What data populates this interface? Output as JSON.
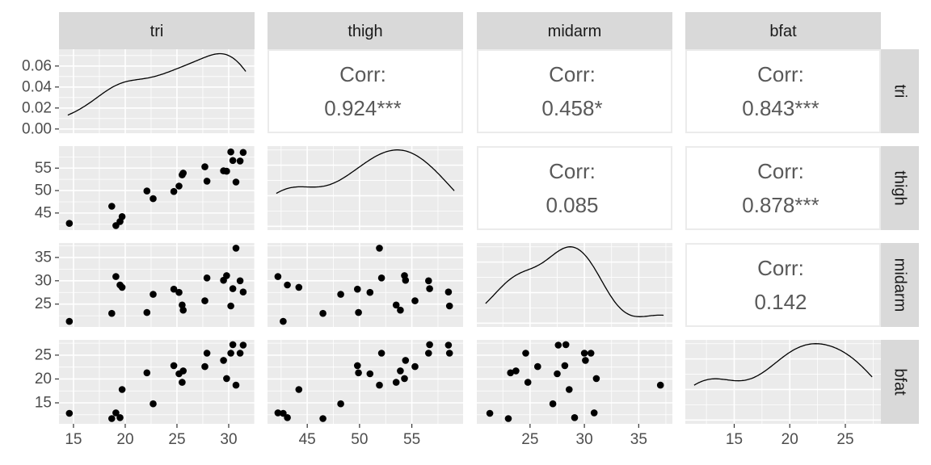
{
  "chart_data": {
    "type": "scatter",
    "variables": [
      "tri",
      "thigh",
      "midarm",
      "bfat"
    ],
    "ranges": {
      "tri": [
        13.6,
        32.5
      ],
      "thigh": [
        41.2,
        59.9
      ],
      "midarm": [
        20.1,
        38.1
      ],
      "bfat": [
        10.6,
        28.2
      ]
    },
    "density_yaxis": {
      "ticks": [
        0.0,
        0.02,
        0.04,
        0.06
      ],
      "labels": [
        "0.00",
        "0.02",
        "0.04",
        "0.06"
      ],
      "ylim": [
        -0.004,
        0.076
      ]
    },
    "axis_ticks": {
      "tri": {
        "values": [
          15,
          20,
          25,
          30
        ],
        "labels": [
          "15",
          "20",
          "25",
          "30"
        ]
      },
      "thigh": {
        "values": [
          45,
          50,
          55
        ],
        "labels": [
          "45",
          "50",
          "55"
        ]
      },
      "midarm": {
        "values": [
          25,
          30,
          35
        ],
        "labels": [
          "25",
          "30",
          "35"
        ]
      },
      "bfat": {
        "values": [
          15,
          20,
          25
        ],
        "labels": [
          "15",
          "20",
          "25"
        ]
      }
    },
    "observations": {
      "tri": [
        19.5,
        24.7,
        30.7,
        29.8,
        19.1,
        25.6,
        31.4,
        27.9,
        22.1,
        25.5,
        31.1,
        30.4,
        18.7,
        19.7,
        14.6,
        29.5,
        27.7,
        30.2,
        22.7,
        25.2
      ],
      "thigh": [
        43.1,
        49.8,
        51.9,
        54.3,
        42.2,
        53.9,
        58.5,
        52.1,
        49.9,
        53.5,
        56.6,
        56.7,
        46.5,
        44.2,
        42.7,
        54.4,
        55.3,
        58.6,
        48.2,
        51.0
      ],
      "midarm": [
        29.1,
        28.2,
        37.0,
        31.1,
        30.9,
        23.7,
        27.6,
        30.6,
        23.2,
        24.8,
        30.0,
        28.3,
        23.0,
        28.6,
        21.3,
        30.1,
        25.7,
        24.6,
        27.1,
        27.5
      ],
      "bfat": [
        11.9,
        22.8,
        18.7,
        20.1,
        12.9,
        21.7,
        27.1,
        25.4,
        21.3,
        19.3,
        25.4,
        27.2,
        11.7,
        17.8,
        12.8,
        23.9,
        22.6,
        25.4,
        14.8,
        21.1
      ]
    },
    "correlations": [
      {
        "row": "tri",
        "col": "thigh",
        "label": "Corr:",
        "value": "0.924***"
      },
      {
        "row": "tri",
        "col": "midarm",
        "label": "Corr:",
        "value": "0.458*"
      },
      {
        "row": "tri",
        "col": "bfat",
        "label": "Corr:",
        "value": "0.843***"
      },
      {
        "row": "thigh",
        "col": "midarm",
        "label": "Corr:",
        "value": "0.085"
      },
      {
        "row": "thigh",
        "col": "bfat",
        "label": "Corr:",
        "value": "0.878***"
      },
      {
        "row": "midarm",
        "col": "bfat",
        "label": "Corr:",
        "value": "0.142"
      }
    ],
    "grid": true,
    "colors": {
      "panel_bg": "#ebebeb",
      "grid": "#ffffff",
      "strip_bg": "#d9d9d9",
      "corr_border": "#ebebeb",
      "point": "#000000",
      "text": "#1a1a1a",
      "tick_text": "#4d4d4d",
      "corr_text": "#595959"
    }
  }
}
